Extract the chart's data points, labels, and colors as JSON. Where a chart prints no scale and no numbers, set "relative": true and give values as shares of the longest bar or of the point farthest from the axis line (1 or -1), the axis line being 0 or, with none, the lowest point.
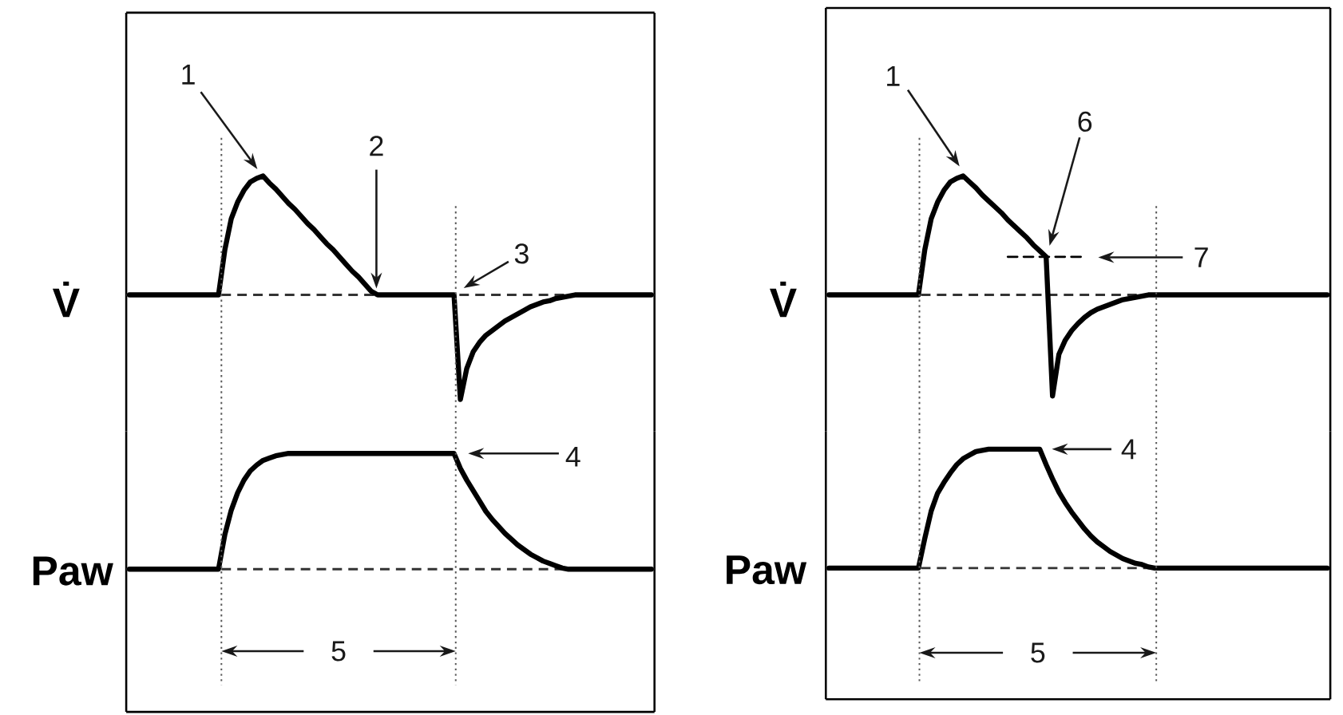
{
  "chart_data": [
    {
      "type": "line",
      "relative": true,
      "tick_labels": false,
      "ylabel": "V̇",
      "categories": [
        null,
        null,
        null,
        null,
        null,
        null,
        null,
        null,
        null,
        null,
        null,
        null,
        null,
        null,
        null,
        null,
        null,
        null,
        null,
        null,
        null,
        null,
        null,
        null,
        null,
        null,
        null,
        null,
        null,
        null,
        null,
        null,
        null,
        null,
        null,
        null,
        null,
        null,
        null,
        null,
        null,
        null,
        null,
        null,
        null,
        null,
        null,
        null,
        null,
        null,
        null,
        null,
        null,
        null,
        null,
        null,
        null,
        null,
        null,
        null,
        null,
        null,
        null,
        null,
        null,
        null,
        null,
        null,
        null,
        null,
        null,
        null,
        null,
        null,
        null,
        null,
        null,
        null,
        null,
        null,
        null,
        null,
        null
      ],
      "series": [
        {
          "color": "#000000",
          "values": [
            0,
            0,
            0,
            0,
            0,
            0,
            0,
            0,
            0,
            0,
            0,
            0,
            0,
            0,
            0,
            0.38,
            0.64,
            0.78,
            0.88,
            0.95,
            0.98,
            1,
            0.94,
            0.89,
            0.83,
            0.77,
            0.72,
            0.66,
            0.6,
            0.55,
            0.49,
            0.43,
            0.38,
            0.32,
            0.26,
            0.2,
            0.15,
            0.09,
            0.03,
            0,
            0,
            0,
            0,
            0,
            0,
            0,
            0,
            0,
            0,
            0,
            0,
            0,
            -0.88,
            -0.62,
            -0.48,
            -0.4,
            -0.34,
            -0.3,
            -0.26,
            -0.22,
            -0.19,
            -0.16,
            -0.13,
            -0.1,
            -0.08,
            -0.06,
            -0.05,
            -0.03,
            -0.02,
            -0.01,
            0,
            0,
            0,
            0,
            0,
            0,
            0,
            0,
            0,
            0,
            0,
            0,
            0
          ]
        }
      ],
      "ref_lines": [
        {
          "axis": "y",
          "value": 0,
          "line_style": "dashed",
          "color": "#333333"
        }
      ],
      "annotations": [
        "1",
        "2",
        "3"
      ]
    },
    {
      "type": "line",
      "relative": true,
      "tick_labels": false,
      "ylabel": "Paw",
      "categories": [
        null,
        null,
        null,
        null,
        null,
        null,
        null,
        null,
        null,
        null,
        null,
        null,
        null,
        null,
        null,
        null,
        null,
        null,
        null,
        null,
        null,
        null,
        null,
        null,
        null,
        null,
        null,
        null,
        null,
        null,
        null,
        null,
        null,
        null,
        null,
        null,
        null,
        null,
        null,
        null,
        null,
        null,
        null,
        null,
        null,
        null,
        null,
        null,
        null,
        null,
        null,
        null,
        null,
        null,
        null,
        null,
        null,
        null,
        null,
        null,
        null,
        null,
        null,
        null,
        null,
        null,
        null,
        null,
        null,
        null,
        null,
        null,
        null,
        null,
        null,
        null,
        null,
        null,
        null,
        null,
        null,
        null,
        null
      ],
      "series": [
        {
          "color": "#000000",
          "values": [
            0,
            0,
            0,
            0,
            0,
            0,
            0,
            0,
            0,
            0,
            0,
            0,
            0,
            0,
            0,
            0.3,
            0.51,
            0.66,
            0.77,
            0.85,
            0.9,
            0.94,
            0.96,
            0.98,
            0.99,
            1,
            1,
            1,
            1,
            1,
            1,
            1,
            1,
            1,
            1,
            1,
            1,
            1,
            1,
            1,
            1,
            1,
            1,
            1,
            1,
            1,
            1,
            1,
            1,
            1,
            1,
            1,
            0.87,
            0.77,
            0.68,
            0.59,
            0.5,
            0.43,
            0.37,
            0.31,
            0.26,
            0.21,
            0.17,
            0.13,
            0.1,
            0.07,
            0.05,
            0.03,
            0.01,
            0,
            0,
            0,
            0,
            0,
            0,
            0,
            0,
            0,
            0,
            0,
            0,
            0,
            0
          ]
        }
      ],
      "ref_lines": [
        {
          "axis": "y",
          "value": 0,
          "line_style": "dashed",
          "color": "#333333"
        }
      ],
      "annotations": [
        "4",
        "5"
      ]
    },
    {
      "type": "line",
      "relative": true,
      "tick_labels": false,
      "ylabel": "V̇",
      "categories": [
        null,
        null,
        null,
        null,
        null,
        null,
        null,
        null,
        null,
        null,
        null,
        null,
        null,
        null,
        null,
        null,
        null,
        null,
        null,
        null,
        null,
        null,
        null,
        null,
        null,
        null,
        null,
        null,
        null,
        null,
        null,
        null,
        null,
        null,
        null,
        null,
        null,
        null,
        null,
        null,
        null,
        null,
        null,
        null,
        null,
        null,
        null,
        null,
        null,
        null,
        null,
        null,
        null,
        null,
        null,
        null,
        null,
        null,
        null,
        null,
        null,
        null,
        null,
        null,
        null,
        null,
        null,
        null,
        null,
        null,
        null,
        null,
        null,
        null,
        null,
        null,
        null,
        null,
        null
      ],
      "series": [
        {
          "color": "#000000",
          "values": [
            0,
            0,
            0,
            0,
            0,
            0,
            0,
            0,
            0,
            0,
            0,
            0,
            0,
            0,
            0,
            0.38,
            0.64,
            0.78,
            0.88,
            0.95,
            0.98,
            1,
            0.95,
            0.9,
            0.84,
            0.79,
            0.74,
            0.69,
            0.63,
            0.58,
            0.53,
            0.48,
            0.42,
            0.37,
            0.32,
            -0.85,
            -0.5,
            -0.38,
            -0.3,
            -0.24,
            -0.19,
            -0.15,
            -0.12,
            -0.1,
            -0.08,
            -0.06,
            -0.04,
            -0.03,
            -0.02,
            -0.01,
            0,
            0,
            0,
            0,
            0,
            0,
            0,
            0,
            0,
            0,
            0,
            0,
            0,
            0,
            0,
            0,
            0,
            0,
            0,
            0,
            0,
            0,
            0,
            0,
            0,
            0,
            0,
            0,
            0
          ]
        },
        {
          "color": "#000000",
          "line_style": "dashed",
          "values": [
            null,
            null,
            null,
            null,
            null,
            null,
            null,
            null,
            null,
            null,
            null,
            null,
            null,
            null,
            null,
            null,
            null,
            null,
            null,
            null,
            null,
            null,
            null,
            null,
            null,
            null,
            null,
            null,
            0.32,
            0.32,
            0.32,
            0.32,
            0.32,
            0.32,
            0.32,
            0.32,
            0.32,
            0.32,
            0.32,
            0.32,
            0.32,
            null,
            null,
            null,
            null,
            null,
            null,
            null,
            null,
            null,
            null,
            null,
            null,
            null,
            null,
            null,
            null,
            null,
            null,
            null,
            null,
            null,
            null,
            null,
            null,
            null,
            null,
            null,
            null,
            null,
            null,
            null,
            null,
            null,
            null,
            null,
            null,
            null,
            null
          ]
        }
      ],
      "ref_lines": [
        {
          "axis": "y",
          "value": 0,
          "line_style": "dashed",
          "color": "#333333"
        }
      ],
      "annotations": [
        "1",
        "6",
        "7"
      ]
    },
    {
      "type": "line",
      "relative": true,
      "tick_labels": false,
      "ylabel": "Paw",
      "categories": [
        null,
        null,
        null,
        null,
        null,
        null,
        null,
        null,
        null,
        null,
        null,
        null,
        null,
        null,
        null,
        null,
        null,
        null,
        null,
        null,
        null,
        null,
        null,
        null,
        null,
        null,
        null,
        null,
        null,
        null,
        null,
        null,
        null,
        null,
        null,
        null,
        null,
        null,
        null,
        null,
        null,
        null,
        null,
        null,
        null,
        null,
        null,
        null,
        null,
        null,
        null,
        null,
        null,
        null,
        null,
        null,
        null,
        null,
        null,
        null,
        null,
        null,
        null,
        null,
        null,
        null,
        null,
        null,
        null,
        null,
        null,
        null,
        null,
        null,
        null,
        null,
        null,
        null,
        null
      ],
      "series": [
        {
          "color": "#000000",
          "values": [
            0,
            0,
            0,
            0,
            0,
            0,
            0,
            0,
            0,
            0,
            0,
            0,
            0,
            0,
            0,
            0.25,
            0.48,
            0.63,
            0.72,
            0.8,
            0.87,
            0.92,
            0.95,
            0.98,
            0.99,
            1,
            1,
            1,
            1,
            1,
            1,
            1,
            1,
            1,
            0.87,
            0.75,
            0.64,
            0.55,
            0.47,
            0.4,
            0.33,
            0.27,
            0.22,
            0.18,
            0.14,
            0.11,
            0.08,
            0.06,
            0.04,
            0.03,
            0.01,
            0,
            0,
            0,
            0,
            0,
            0,
            0,
            0,
            0,
            0,
            0,
            0,
            0,
            0,
            0,
            0,
            0,
            0,
            0,
            0,
            0,
            0,
            0,
            0,
            0,
            0,
            0,
            0
          ]
        }
      ],
      "ref_lines": [
        {
          "axis": "y",
          "value": 0,
          "line_style": "dashed",
          "color": "#333333"
        }
      ],
      "annotations": [
        "4",
        "5"
      ]
    }
  ]
}
